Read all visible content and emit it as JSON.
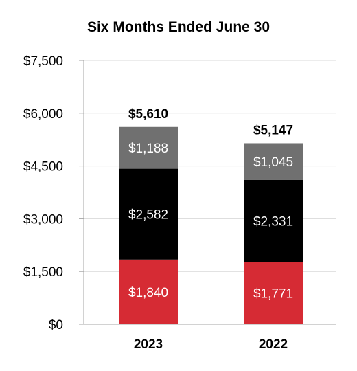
{
  "chart_data": {
    "type": "bar",
    "stacked": true,
    "title": "Six Months Ended June 30",
    "xlabel": "",
    "ylabel": "",
    "categories": [
      "2023",
      "2022"
    ],
    "series": [
      {
        "values": [
          1840,
          1771
        ],
        "labels": [
          "$1,840",
          "$1,771"
        ],
        "color": "#d62b34"
      },
      {
        "values": [
          2582,
          2331
        ],
        "labels": [
          "$2,582",
          "$2,331"
        ],
        "color": "#000000"
      },
      {
        "values": [
          1188,
          1045
        ],
        "labels": [
          "$1,188",
          "$1,045"
        ],
        "color": "#707070"
      }
    ],
    "totals": [
      5610,
      5147
    ],
    "total_labels": [
      "$5,610",
      "$5,147"
    ],
    "ylim": [
      0,
      7500
    ],
    "yticks": [
      0,
      1500,
      3000,
      4500,
      6000,
      7500
    ],
    "ytick_labels": [
      "$0",
      "$1,500",
      "$3,000",
      "$4,500",
      "$6,000",
      "$7,500"
    ],
    "grid": true,
    "legend": "none"
  }
}
